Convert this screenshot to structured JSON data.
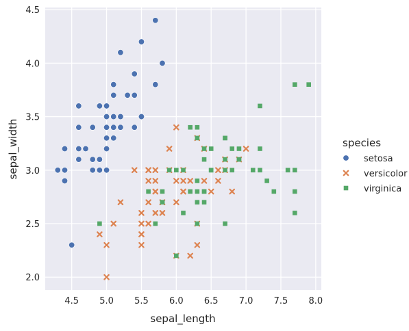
{
  "chart_data": {
    "type": "scatter",
    "xlabel": "sepal_length",
    "ylabel": "sepal_width",
    "xlim": [
      4.12,
      8.08
    ],
    "ylim": [
      1.88,
      4.52
    ],
    "xticks": [
      "4.5",
      "5.0",
      "5.5",
      "6.0",
      "6.5",
      "7.0",
      "7.5",
      "8.0"
    ],
    "yticks": [
      "2.0",
      "2.5",
      "3.0",
      "3.5",
      "4.0",
      "4.5"
    ],
    "grid": true,
    "background": "#eaeaf2",
    "legend": {
      "title": "species",
      "position": "right"
    },
    "series": [
      {
        "name": "setosa",
        "color": "#4c72b0",
        "marker": "circle",
        "points": [
          [
            5.1,
            3.5
          ],
          [
            4.9,
            3.0
          ],
          [
            4.7,
            3.2
          ],
          [
            4.6,
            3.1
          ],
          [
            5.0,
            3.6
          ],
          [
            5.4,
            3.9
          ],
          [
            4.6,
            3.4
          ],
          [
            5.0,
            3.4
          ],
          [
            4.4,
            2.9
          ],
          [
            4.9,
            3.1
          ],
          [
            5.4,
            3.7
          ],
          [
            4.8,
            3.4
          ],
          [
            4.8,
            3.0
          ],
          [
            4.3,
            3.0
          ],
          [
            5.8,
            4.0
          ],
          [
            5.7,
            4.4
          ],
          [
            5.4,
            3.9
          ],
          [
            5.1,
            3.5
          ],
          [
            5.7,
            3.8
          ],
          [
            5.1,
            3.8
          ],
          [
            5.4,
            3.4
          ],
          [
            5.1,
            3.7
          ],
          [
            4.6,
            3.6
          ],
          [
            5.1,
            3.3
          ],
          [
            4.8,
            3.4
          ],
          [
            5.0,
            3.0
          ],
          [
            5.0,
            3.4
          ],
          [
            5.2,
            3.5
          ],
          [
            5.2,
            3.4
          ],
          [
            4.7,
            3.2
          ],
          [
            4.8,
            3.1
          ],
          [
            5.4,
            3.4
          ],
          [
            5.2,
            4.1
          ],
          [
            5.5,
            4.2
          ],
          [
            4.9,
            3.1
          ],
          [
            5.0,
            3.2
          ],
          [
            5.5,
            3.5
          ],
          [
            4.9,
            3.6
          ],
          [
            4.4,
            3.0
          ],
          [
            5.1,
            3.4
          ],
          [
            5.0,
            3.5
          ],
          [
            4.5,
            2.3
          ],
          [
            4.4,
            3.2
          ],
          [
            5.0,
            3.5
          ],
          [
            5.1,
            3.8
          ],
          [
            4.8,
            3.0
          ],
          [
            5.1,
            3.8
          ],
          [
            4.6,
            3.2
          ],
          [
            5.3,
            3.7
          ],
          [
            5.0,
            3.3
          ]
        ]
      },
      {
        "name": "versicolor",
        "color": "#dd8452",
        "marker": "x",
        "points": [
          [
            7.0,
            3.2
          ],
          [
            6.4,
            3.2
          ],
          [
            6.9,
            3.1
          ],
          [
            5.5,
            2.3
          ],
          [
            6.5,
            2.8
          ],
          [
            5.7,
            2.8
          ],
          [
            6.3,
            3.3
          ],
          [
            4.9,
            2.4
          ],
          [
            6.6,
            2.9
          ],
          [
            5.2,
            2.7
          ],
          [
            5.0,
            2.0
          ],
          [
            5.9,
            3.0
          ],
          [
            6.0,
            2.2
          ],
          [
            6.1,
            2.9
          ],
          [
            5.6,
            2.9
          ],
          [
            6.7,
            3.1
          ],
          [
            5.6,
            3.0
          ],
          [
            5.8,
            2.7
          ],
          [
            6.2,
            2.2
          ],
          [
            5.6,
            2.5
          ],
          [
            5.9,
            3.2
          ],
          [
            6.1,
            2.8
          ],
          [
            6.3,
            2.5
          ],
          [
            6.1,
            2.8
          ],
          [
            6.4,
            2.9
          ],
          [
            6.6,
            3.0
          ],
          [
            6.8,
            2.8
          ],
          [
            6.7,
            3.0
          ],
          [
            6.0,
            2.9
          ],
          [
            5.7,
            2.6
          ],
          [
            5.5,
            2.4
          ],
          [
            5.5,
            2.4
          ],
          [
            5.8,
            2.7
          ],
          [
            6.0,
            2.7
          ],
          [
            5.4,
            3.0
          ],
          [
            6.0,
            3.4
          ],
          [
            6.7,
            3.1
          ],
          [
            6.3,
            2.3
          ],
          [
            5.6,
            3.0
          ],
          [
            5.5,
            2.5
          ],
          [
            5.5,
            2.6
          ],
          [
            6.1,
            3.0
          ],
          [
            5.8,
            2.6
          ],
          [
            5.0,
            2.3
          ],
          [
            5.6,
            2.7
          ],
          [
            5.7,
            3.0
          ],
          [
            5.7,
            2.9
          ],
          [
            6.2,
            2.9
          ],
          [
            5.1,
            2.5
          ],
          [
            5.7,
            2.8
          ]
        ]
      },
      {
        "name": "virginica",
        "color": "#55a868",
        "marker": "square",
        "points": [
          [
            6.3,
            3.3
          ],
          [
            5.8,
            2.7
          ],
          [
            7.1,
            3.0
          ],
          [
            6.3,
            2.9
          ],
          [
            6.5,
            3.0
          ],
          [
            7.6,
            3.0
          ],
          [
            4.9,
            2.5
          ],
          [
            7.3,
            2.9
          ],
          [
            6.7,
            2.5
          ],
          [
            7.2,
            3.6
          ],
          [
            6.5,
            3.2
          ],
          [
            6.4,
            2.7
          ],
          [
            6.8,
            3.0
          ],
          [
            5.7,
            2.5
          ],
          [
            5.8,
            2.8
          ],
          [
            6.4,
            3.2
          ],
          [
            6.5,
            3.0
          ],
          [
            7.7,
            3.8
          ],
          [
            7.7,
            2.6
          ],
          [
            6.0,
            2.2
          ],
          [
            6.9,
            3.2
          ],
          [
            5.6,
            2.8
          ],
          [
            7.7,
            2.8
          ],
          [
            6.3,
            2.7
          ],
          [
            6.7,
            3.3
          ],
          [
            7.2,
            3.2
          ],
          [
            6.2,
            2.8
          ],
          [
            6.1,
            3.0
          ],
          [
            6.4,
            2.8
          ],
          [
            7.2,
            3.0
          ],
          [
            7.4,
            2.8
          ],
          [
            7.9,
            3.8
          ],
          [
            6.4,
            2.8
          ],
          [
            6.3,
            2.8
          ],
          [
            6.1,
            2.6
          ],
          [
            7.7,
            3.0
          ],
          [
            6.3,
            3.4
          ],
          [
            6.4,
            3.1
          ],
          [
            6.0,
            3.0
          ],
          [
            6.9,
            3.1
          ],
          [
            6.7,
            3.1
          ],
          [
            6.9,
            3.1
          ],
          [
            5.8,
            2.7
          ],
          [
            6.8,
            3.2
          ],
          [
            6.7,
            3.3
          ],
          [
            6.7,
            3.0
          ],
          [
            6.3,
            2.5
          ],
          [
            6.5,
            3.0
          ],
          [
            6.2,
            3.4
          ],
          [
            5.9,
            3.0
          ]
        ]
      }
    ]
  }
}
